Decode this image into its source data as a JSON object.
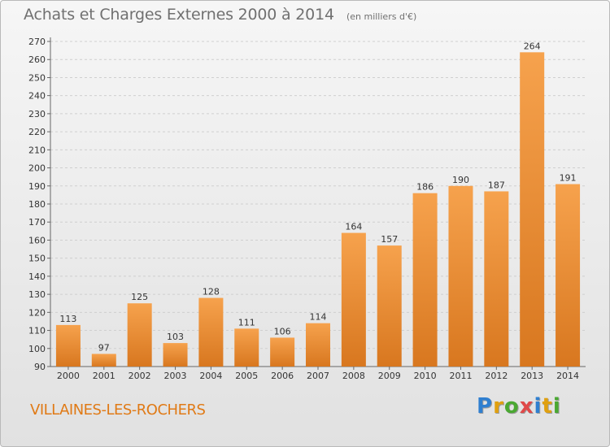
{
  "header": {
    "title": "Achats et Charges Externes 2000 à 2014",
    "subtitle": "(en milliers d'€)"
  },
  "footer": {
    "place": "VILLAINES-LES-ROCHERS",
    "logo_text": "Proxiti"
  },
  "colors": {
    "bar_light": "#f6a24d",
    "bar_dark": "#d8771f",
    "accent": "#e07a16"
  },
  "chart_data": {
    "type": "bar",
    "title": "Achats et Charges Externes 2000 à 2014",
    "subtitle": "(en milliers d'€)",
    "xlabel": "",
    "ylabel": "",
    "categories": [
      "2000",
      "2001",
      "2002",
      "2003",
      "2004",
      "2005",
      "2006",
      "2007",
      "2008",
      "2009",
      "2010",
      "2011",
      "2012",
      "2013",
      "2014"
    ],
    "values": [
      113,
      97,
      125,
      103,
      128,
      111,
      106,
      114,
      164,
      157,
      186,
      190,
      187,
      264,
      191
    ],
    "ylim": [
      90,
      270
    ],
    "yticks": [
      90,
      100,
      110,
      120,
      130,
      140,
      150,
      160,
      170,
      180,
      190,
      200,
      210,
      220,
      230,
      240,
      250,
      260,
      270
    ],
    "grid": true,
    "legend": "none"
  }
}
